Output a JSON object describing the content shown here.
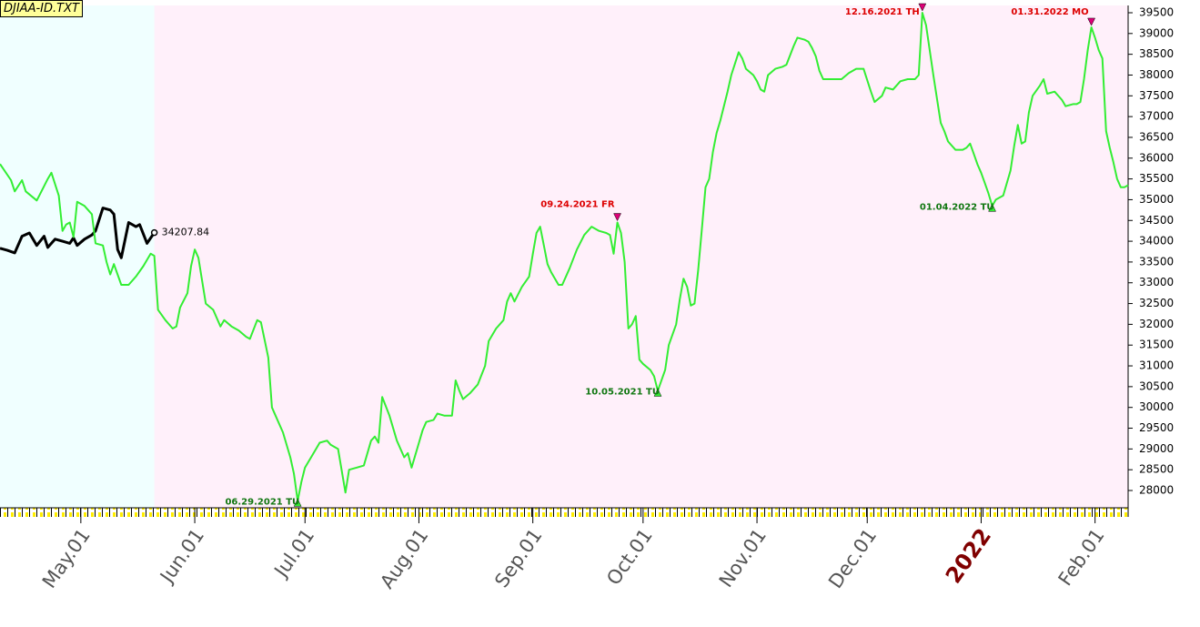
{
  "chart_data": {
    "type": "line",
    "title": "DJIAA-ID.TXT",
    "xlim": [
      "2021-04-09",
      "2022-02-10"
    ],
    "ylim": [
      27584,
      39675
    ],
    "yticks": [
      28000,
      28500,
      29000,
      29500,
      30000,
      30500,
      31000,
      31500,
      32000,
      32500,
      33000,
      33500,
      34000,
      34500,
      35000,
      35500,
      36000,
      36500,
      37000,
      37500,
      38000,
      38500,
      39000,
      39500
    ],
    "xticks": [
      {
        "value": "2021-05-01",
        "label": "May.01"
      },
      {
        "value": "2021-06-01",
        "label": "Jun.01"
      },
      {
        "value": "2021-07-01",
        "label": "Jul.01"
      },
      {
        "value": "2021-08-01",
        "label": "Aug.01"
      },
      {
        "value": "2021-09-01",
        "label": "Sep.01"
      },
      {
        "value": "2021-10-01",
        "label": "Oct.01"
      },
      {
        "value": "2021-11-01",
        "label": "Nov.01"
      },
      {
        "value": "2021-12-01",
        "label": "Dec.01"
      },
      {
        "value": "2022-01-01",
        "label": "2022",
        "color": "#800000"
      },
      {
        "value": "2022-02-01",
        "label": "Feb.01"
      }
    ],
    "series": [
      {
        "color": "#33ee33",
        "x": [
          "2021-04-09",
          "2021-04-12",
          "2021-04-13",
          "2021-04-15",
          "2021-04-16",
          "2021-04-19",
          "2021-04-20",
          "2021-04-22",
          "2021-04-23",
          "2021-04-25",
          "2021-04-26",
          "2021-04-27",
          "2021-04-28",
          "2021-04-29",
          "2021-04-30",
          "2021-05-02",
          "2021-05-04",
          "2021-05-05",
          "2021-05-07",
          "2021-05-08",
          "2021-05-09",
          "2021-05-10",
          "2021-05-12",
          "2021-05-14",
          "2021-05-16",
          "2021-05-18",
          "2021-05-20",
          "2021-05-21",
          "2021-05-22",
          "2021-05-24",
          "2021-05-26",
          "2021-05-27",
          "2021-05-28",
          "2021-05-30",
          "2021-05-31",
          "2021-06-01",
          "2021-06-02",
          "2021-06-04",
          "2021-06-06",
          "2021-06-08",
          "2021-06-09",
          "2021-06-11",
          "2021-06-13",
          "2021-06-15",
          "2021-06-16",
          "2021-06-18",
          "2021-06-19",
          "2021-06-21",
          "2021-06-22",
          "2021-06-23",
          "2021-06-25",
          "2021-06-27",
          "2021-06-28",
          "2021-06-29",
          "2021-06-30",
          "2021-07-01",
          "2021-07-03",
          "2021-07-05",
          "2021-07-07",
          "2021-07-08",
          "2021-07-10",
          "2021-07-12",
          "2021-07-13",
          "2021-07-15",
          "2021-07-17",
          "2021-07-19",
          "2021-07-20",
          "2021-07-21",
          "2021-07-22",
          "2021-07-24",
          "2021-07-26",
          "2021-07-28",
          "2021-07-29",
          "2021-07-30",
          "2021-08-01",
          "2021-08-02",
          "2021-08-03",
          "2021-08-05",
          "2021-08-06",
          "2021-08-08",
          "2021-08-10",
          "2021-08-11",
          "2021-08-12",
          "2021-08-13",
          "2021-08-15",
          "2021-08-17",
          "2021-08-19",
          "2021-08-20",
          "2021-08-22",
          "2021-08-24",
          "2021-08-25",
          "2021-08-26",
          "2021-08-27",
          "2021-08-29",
          "2021-08-31",
          "2021-09-01",
          "2021-09-02",
          "2021-09-03",
          "2021-09-04",
          "2021-09-05",
          "2021-09-06",
          "2021-09-08",
          "2021-09-09",
          "2021-09-11",
          "2021-09-13",
          "2021-09-15",
          "2021-09-17",
          "2021-09-19",
          "2021-09-21",
          "2021-09-22",
          "2021-09-23",
          "2021-09-24",
          "2021-09-25",
          "2021-09-26",
          "2021-09-27",
          "2021-09-28",
          "2021-09-29",
          "2021-09-30",
          "2021-10-01",
          "2021-10-03",
          "2021-10-04",
          "2021-10-05",
          "2021-10-07",
          "2021-10-08",
          "2021-10-10",
          "2021-10-11",
          "2021-10-12",
          "2021-10-13",
          "2021-10-14",
          "2021-10-15",
          "2021-10-16",
          "2021-10-17",
          "2021-10-18",
          "2021-10-19",
          "2021-10-20",
          "2021-10-21",
          "2021-10-22",
          "2021-10-24",
          "2021-10-25",
          "2021-10-27",
          "2021-10-28",
          "2021-10-29",
          "2021-10-31",
          "2021-11-01",
          "2021-11-02",
          "2021-11-03",
          "2021-11-04",
          "2021-11-06",
          "2021-11-08",
          "2021-11-09",
          "2021-11-11",
          "2021-11-12",
          "2021-11-14",
          "2021-11-15",
          "2021-11-16",
          "2021-11-17",
          "2021-11-18",
          "2021-11-19",
          "2021-11-22",
          "2021-11-24",
          "2021-11-26",
          "2021-11-28",
          "2021-11-30",
          "2021-12-02",
          "2021-12-03",
          "2021-12-05",
          "2021-12-06",
          "2021-12-08",
          "2021-12-10",
          "2021-12-12",
          "2021-12-14",
          "2021-12-15",
          "2021-12-16",
          "2021-12-17",
          "2021-12-18",
          "2021-12-19",
          "2021-12-21",
          "2021-12-22",
          "2021-12-23",
          "2021-12-25",
          "2021-12-27",
          "2021-12-28",
          "2021-12-29",
          "2021-12-30",
          "2021-12-31",
          "2022-01-01",
          "2022-01-02",
          "2022-01-03",
          "2022-01-04",
          "2022-01-05",
          "2022-01-07",
          "2022-01-09",
          "2022-01-10",
          "2022-01-11",
          "2022-01-12",
          "2022-01-13",
          "2022-01-14",
          "2022-01-15",
          "2022-01-17",
          "2022-01-18",
          "2022-01-19",
          "2022-01-21",
          "2022-01-23",
          "2022-01-24",
          "2022-01-26",
          "2022-01-27",
          "2022-01-28",
          "2022-01-29",
          "2022-01-30",
          "2022-01-31",
          "2022-02-01",
          "2022-02-02",
          "2022-02-03",
          "2022-02-04",
          "2022-02-05",
          "2022-02-06",
          "2022-02-07",
          "2022-02-08",
          "2022-02-09",
          "2022-02-10"
        ],
        "values": [
          35860,
          35470,
          35200,
          35470,
          35200,
          34980,
          35150,
          35500,
          35650,
          35100,
          34250,
          34400,
          34450,
          34100,
          34950,
          34850,
          34650,
          33950,
          33900,
          33500,
          33200,
          33450,
          32950,
          32950,
          33150,
          33400,
          33700,
          33650,
          32350,
          32100,
          31900,
          31950,
          32400,
          32750,
          33400,
          33800,
          33600,
          32500,
          32350,
          31950,
          32100,
          31950,
          31850,
          31700,
          31650,
          32100,
          32050,
          31200,
          30000,
          29800,
          29400,
          28800,
          28400,
          27750,
          28200,
          28550,
          28850,
          29150,
          29200,
          29100,
          29000,
          27950,
          28500,
          28550,
          28600,
          29200,
          29300,
          29150,
          30250,
          29800,
          29200,
          28800,
          28900,
          28550,
          29150,
          29450,
          29650,
          29700,
          29850,
          29800,
          29800,
          30650,
          30400,
          30200,
          30350,
          30550,
          31000,
          31600,
          31900,
          32100,
          32550,
          32750,
          32550,
          32900,
          33150,
          33700,
          34200,
          34350,
          33900,
          33450,
          33250,
          32950,
          32950,
          33350,
          33800,
          34150,
          34350,
          34250,
          34200,
          34150,
          33700,
          34450,
          34200,
          33500,
          31900,
          32000,
          32200,
          31150,
          31050,
          30900,
          30750,
          30400,
          30900,
          31500,
          32000,
          32600,
          33100,
          32900,
          32450,
          32500,
          33300,
          34300,
          35300,
          35500,
          36150,
          36600,
          36900,
          37600,
          38000,
          38550,
          38400,
          38150,
          38000,
          37850,
          37650,
          37600,
          38000,
          38150,
          38200,
          38250,
          38700,
          38900,
          38850,
          38800,
          38650,
          38450,
          38100,
          37900,
          37900,
          37900,
          38050,
          38150,
          38150,
          37600,
          37350,
          37500,
          37700,
          37650,
          37850,
          37900,
          37900,
          38000,
          39500,
          39200,
          38600,
          38000,
          36850,
          36650,
          36400,
          36200,
          36200,
          36250,
          36350,
          36100,
          35850,
          35650,
          35400,
          35150,
          34850,
          35000,
          35100,
          35700,
          36300,
          36800,
          36350,
          36400,
          37100,
          37500,
          37750,
          37900,
          37550,
          37600,
          37400,
          37250,
          37300,
          37300,
          37350,
          37900,
          38600,
          39150,
          38900,
          38600,
          38400,
          36650,
          36250,
          35900,
          35500,
          35300,
          35300,
          35350
        ]
      },
      {
        "color": "#000000",
        "label_last": true,
        "x": [
          "2021-04-09",
          "2021-04-11",
          "2021-04-13",
          "2021-04-15",
          "2021-04-17",
          "2021-04-19",
          "2021-04-21",
          "2021-04-22",
          "2021-04-24",
          "2021-04-26",
          "2021-04-28",
          "2021-04-29",
          "2021-04-30",
          "2021-05-02",
          "2021-05-04",
          "2021-05-05",
          "2021-05-07",
          "2021-05-09",
          "2021-05-10",
          "2021-05-11",
          "2021-05-12",
          "2021-05-14",
          "2021-05-16",
          "2021-05-17",
          "2021-05-19",
          "2021-05-21"
        ],
        "values": [
          33830,
          33780,
          33720,
          34120,
          34200,
          33900,
          34120,
          33850,
          34050,
          34000,
          33950,
          34080,
          33900,
          34050,
          34150,
          34250,
          34800,
          34750,
          34650,
          33800,
          33600,
          34450,
          34350,
          34400,
          33950,
          34207.84
        ]
      }
    ],
    "high_color": "#dd0000",
    "low_color": "#117711",
    "highs": [
      {
        "label": "09.24.2021 FR",
        "x": "2021-09-24",
        "value": 34450
      },
      {
        "label": "12.16.2021 TH",
        "x": "2021-12-16",
        "value": 39500
      },
      {
        "label": "01.31.2022 MO",
        "x": "2022-01-31",
        "value": 39150
      }
    ],
    "lows": [
      {
        "label": "06.29.2021 TU",
        "x": "2021-06-29",
        "value": 27750
      },
      {
        "label": "10.05.2021 TU",
        "x": "2021-10-05",
        "value": 30400
      },
      {
        "label": "01.04.2022 TU",
        "x": "2022-01-04",
        "value": 34850
      }
    ]
  }
}
